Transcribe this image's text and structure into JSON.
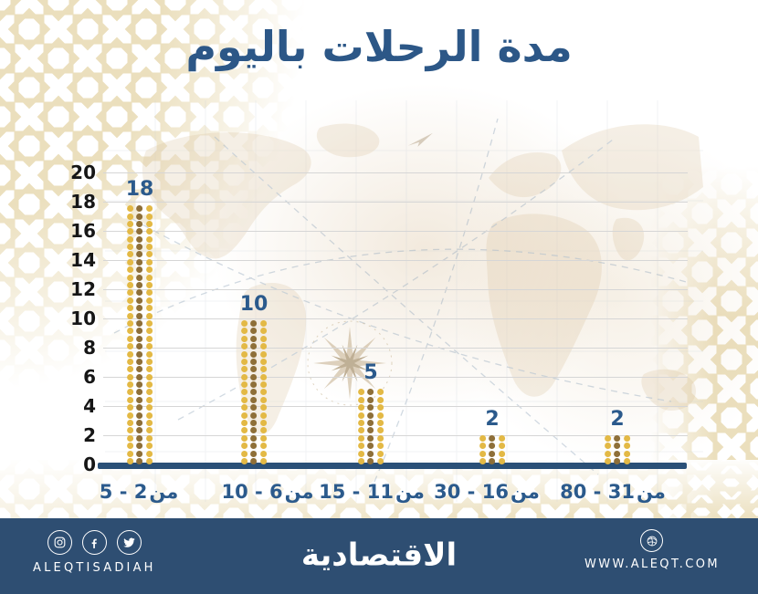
{
  "page": {
    "title": "مدة الرحلات باليوم"
  },
  "chart_data": {
    "type": "bar",
    "style": "dot-matrix-bars",
    "title": "مدة الرحلات باليوم",
    "categories": [
      "من 2-5",
      "من 6-10",
      "من 11-15",
      "من 16-30",
      "من 31-80"
    ],
    "categories_display": [
      {
        "range": "5 - 2",
        "word": "من"
      },
      {
        "range": "10 - 6",
        "word": "من"
      },
      {
        "range": "15 - 11",
        "word": "من"
      },
      {
        "range": "30 - 16",
        "word": "من"
      },
      {
        "range": "80 - 31",
        "word": "من"
      }
    ],
    "values": [
      18,
      10,
      5,
      2,
      2
    ],
    "ylim": [
      0,
      20
    ],
    "yticks": [
      20,
      18,
      16,
      14,
      12,
      10,
      8,
      6,
      4,
      2,
      0
    ],
    "grid": true,
    "xlabel": "",
    "ylabel": "",
    "legend": null,
    "colors": {
      "dot_gold": "#E3B945",
      "dot_brown": "#8E6F38",
      "axis_line": "#2A5077",
      "value_label": "#2B5A8C",
      "category_label": "#2B5A8C",
      "tick_label": "#161616",
      "gridline": "#D6D6D6",
      "title": "#2C5787"
    },
    "background_description": "faded antique world map with compass rose and dashed flight routes"
  },
  "footer": {
    "background_color": "#2E4E72",
    "social_handle": "ALEQTISADIAH",
    "logo_text": "الاقتصادية",
    "website": "WWW.ALEQT.COM",
    "icons": [
      "instagram-icon",
      "facebook-icon",
      "twitter-icon",
      "website-globe-icon"
    ]
  },
  "decor": {
    "pattern_color": "#EBDFBD"
  }
}
